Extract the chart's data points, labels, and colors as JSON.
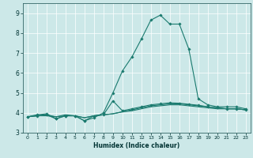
{
  "xlabel": "Humidex (Indice chaleur)",
  "ylabel": "",
  "bg_color": "#cce8e8",
  "grid_color": "#ffffff",
  "line_color": "#1a7a6e",
  "xlim": [
    -0.5,
    23.5
  ],
  "ylim": [
    3.0,
    9.5
  ],
  "xticks": [
    0,
    1,
    2,
    3,
    4,
    5,
    6,
    7,
    8,
    9,
    10,
    11,
    12,
    13,
    14,
    15,
    16,
    17,
    18,
    19,
    20,
    21,
    22,
    23
  ],
  "yticks": [
    3,
    4,
    5,
    6,
    7,
    8,
    9
  ],
  "lines": [
    {
      "x": [
        0,
        1,
        2,
        3,
        4,
        5,
        6,
        7,
        8,
        9,
        10,
        11,
        12,
        13,
        14,
        15,
        16,
        17,
        18,
        19,
        20,
        21,
        22,
        23
      ],
      "y": [
        3.8,
        3.85,
        3.85,
        3.8,
        3.9,
        3.85,
        3.75,
        3.85,
        3.9,
        3.95,
        4.05,
        4.1,
        4.2,
        4.3,
        4.35,
        4.4,
        4.4,
        4.35,
        4.3,
        4.25,
        4.2,
        4.2,
        4.2,
        4.15
      ],
      "marker": false
    },
    {
      "x": [
        0,
        1,
        2,
        3,
        4,
        5,
        6,
        7,
        8,
        9,
        10,
        11,
        12,
        13,
        14,
        15,
        16,
        17,
        18,
        19,
        20,
        21,
        22,
        23
      ],
      "y": [
        3.8,
        3.85,
        3.9,
        3.8,
        3.85,
        3.85,
        3.75,
        3.85,
        3.9,
        3.95,
        4.05,
        4.15,
        4.25,
        4.35,
        4.4,
        4.45,
        4.45,
        4.4,
        4.35,
        4.3,
        4.25,
        4.2,
        4.2,
        4.15
      ],
      "marker": false
    },
    {
      "x": [
        0,
        1,
        2,
        3,
        4,
        5,
        6,
        7,
        8,
        9,
        10,
        11,
        12,
        13,
        14,
        15,
        16,
        17,
        18,
        19,
        20,
        21,
        22,
        23
      ],
      "y": [
        3.8,
        3.85,
        3.9,
        3.7,
        3.85,
        3.85,
        3.6,
        3.85,
        3.9,
        4.6,
        4.1,
        4.2,
        4.3,
        4.4,
        4.45,
        4.5,
        4.48,
        4.43,
        4.38,
        4.3,
        4.25,
        4.2,
        4.2,
        4.15
      ],
      "marker": true
    },
    {
      "x": [
        0,
        1,
        2,
        3,
        4,
        5,
        6,
        7,
        8,
        9,
        10,
        11,
        12,
        13,
        14,
        15,
        16,
        17,
        18,
        19,
        20,
        21,
        22,
        23
      ],
      "y": [
        3.8,
        3.9,
        3.95,
        3.7,
        3.85,
        3.85,
        3.6,
        3.75,
        4.0,
        5.0,
        6.1,
        6.8,
        7.7,
        8.65,
        8.9,
        8.45,
        8.45,
        7.2,
        4.7,
        4.4,
        4.3,
        4.3,
        4.3,
        4.2
      ],
      "marker": true
    }
  ]
}
